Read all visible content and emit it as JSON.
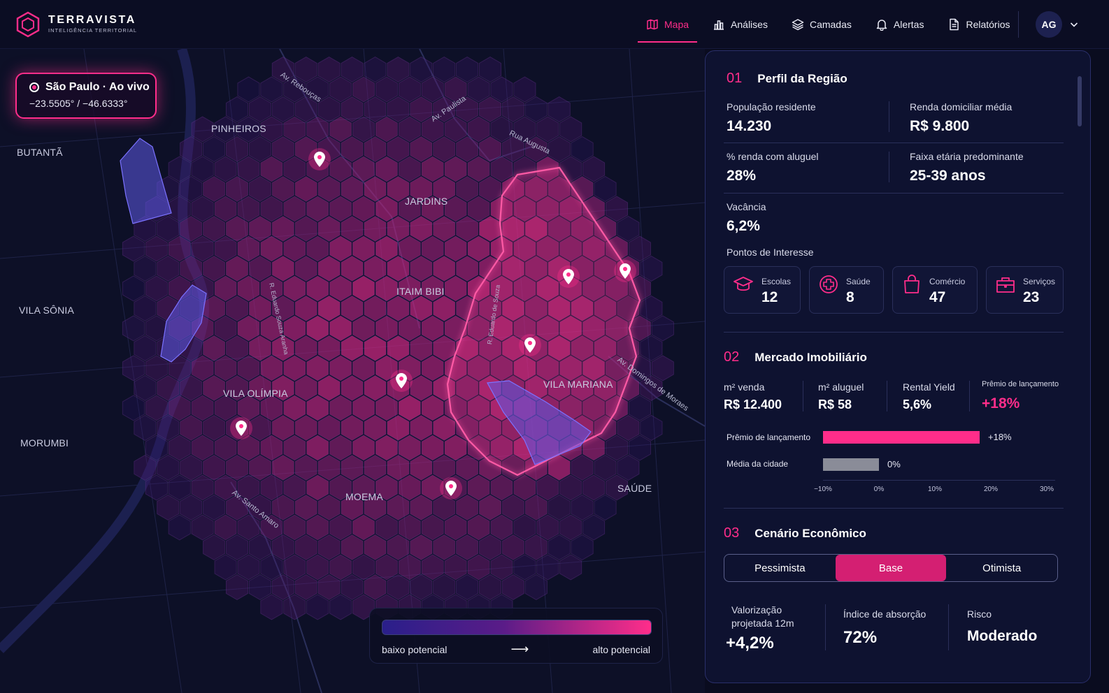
{
  "app": {
    "name": "TERRAVISTA",
    "subtitle": "INTELIGÊNCIA TERRITORIAL"
  },
  "nav": [
    {
      "label": "Mapa",
      "icon": "map-icon",
      "active": true
    },
    {
      "label": "Análises",
      "icon": "bar-chart-icon",
      "active": false
    },
    {
      "label": "Camadas",
      "icon": "layers-icon",
      "active": false
    },
    {
      "label": "Alertas",
      "icon": "bell-icon",
      "active": false
    },
    {
      "label": "Relatórios",
      "icon": "document-icon",
      "active": false
    }
  ],
  "user": {
    "initials": "AG"
  },
  "map": {
    "location_title": "São Paulo · Ao vivo",
    "coordinates": "−23.5505° / −46.6333°",
    "neighborhoods": [
      "PINHEIROS",
      "BUTANTÃ",
      "JARDINS",
      "ITAIM BIBI",
      "VILA SÔNIA",
      "VILA OLÍMPIA",
      "VILA MARIANA",
      "MORUMBI",
      "MOEMA",
      "SAÚDE"
    ],
    "streets": [
      "Av. Rebouças",
      "Av. Paulista",
      "Rua Augusta",
      "R. Eduardo Souza Aranha",
      "R. Eduardo de Souza",
      "Av. Domingos de Moraes",
      "Av. Santo Amaro"
    ],
    "legend": {
      "low": "baixo potencial",
      "high": "alto potencial",
      "arrow": "⟶"
    }
  },
  "colors": {
    "accent": "#ff2d8a",
    "low_potential": "#2a1f8a",
    "high_potential": "#ff2d8a",
    "bar_gray": "#8a8c98"
  },
  "profile": {
    "number": "01",
    "title": "Perfil da Região",
    "stats": [
      {
        "label": "População residente",
        "value": "14.230"
      },
      {
        "label": "Renda domiciliar média",
        "value": "R$ 9.800"
      },
      {
        "label": "% renda com aluguel",
        "value": "28%"
      },
      {
        "label": "Faixa etária predominante",
        "value": "25-39 anos"
      },
      {
        "label": "Vacância",
        "value": "6,2%"
      }
    ],
    "poi_title": "Pontos de Interesse",
    "poi": [
      {
        "label": "Escolas",
        "count": "12",
        "icon": "graduation-cap-icon"
      },
      {
        "label": "Saúde",
        "count": "8",
        "icon": "health-cross-icon"
      },
      {
        "label": "Comércio",
        "count": "47",
        "icon": "shopping-bag-icon"
      },
      {
        "label": "Serviços",
        "count": "23",
        "icon": "briefcase-icon"
      }
    ]
  },
  "market": {
    "number": "02",
    "title": "Mercado Imobiliário",
    "stats": [
      {
        "label": "m² venda",
        "value": "R$ 12.400"
      },
      {
        "label": "m² aluguel",
        "value": "R$ 58"
      },
      {
        "label": "Rental Yield",
        "value": "5,6%"
      },
      {
        "label": "Prêmio de lançamento",
        "value": "+18%"
      }
    ]
  },
  "chart_data": {
    "type": "bar",
    "orientation": "horizontal",
    "categories": [
      "Prêmio de lançamento",
      "Média da cidade"
    ],
    "values": [
      18,
      0
    ],
    "value_labels": [
      "+18%",
      "0%"
    ],
    "colors": [
      "#ff2d8a",
      "#8a8c98"
    ],
    "xlim": [
      -10,
      30
    ],
    "ticks": [
      "−10%",
      "0%",
      "10%",
      "20%",
      "30%"
    ],
    "tick_values": [
      -10,
      0,
      10,
      20,
      30
    ]
  },
  "economy": {
    "number": "03",
    "title": "Cenário Econômico",
    "scenarios": [
      "Pessimista",
      "Base",
      "Otimista"
    ],
    "selected": "Base",
    "stats": [
      {
        "label": "Valorização projetada 12m",
        "value": "+4,2%"
      },
      {
        "label": "Índice de absorção",
        "value": "72%"
      },
      {
        "label": "Risco",
        "value": "Moderado"
      }
    ]
  }
}
